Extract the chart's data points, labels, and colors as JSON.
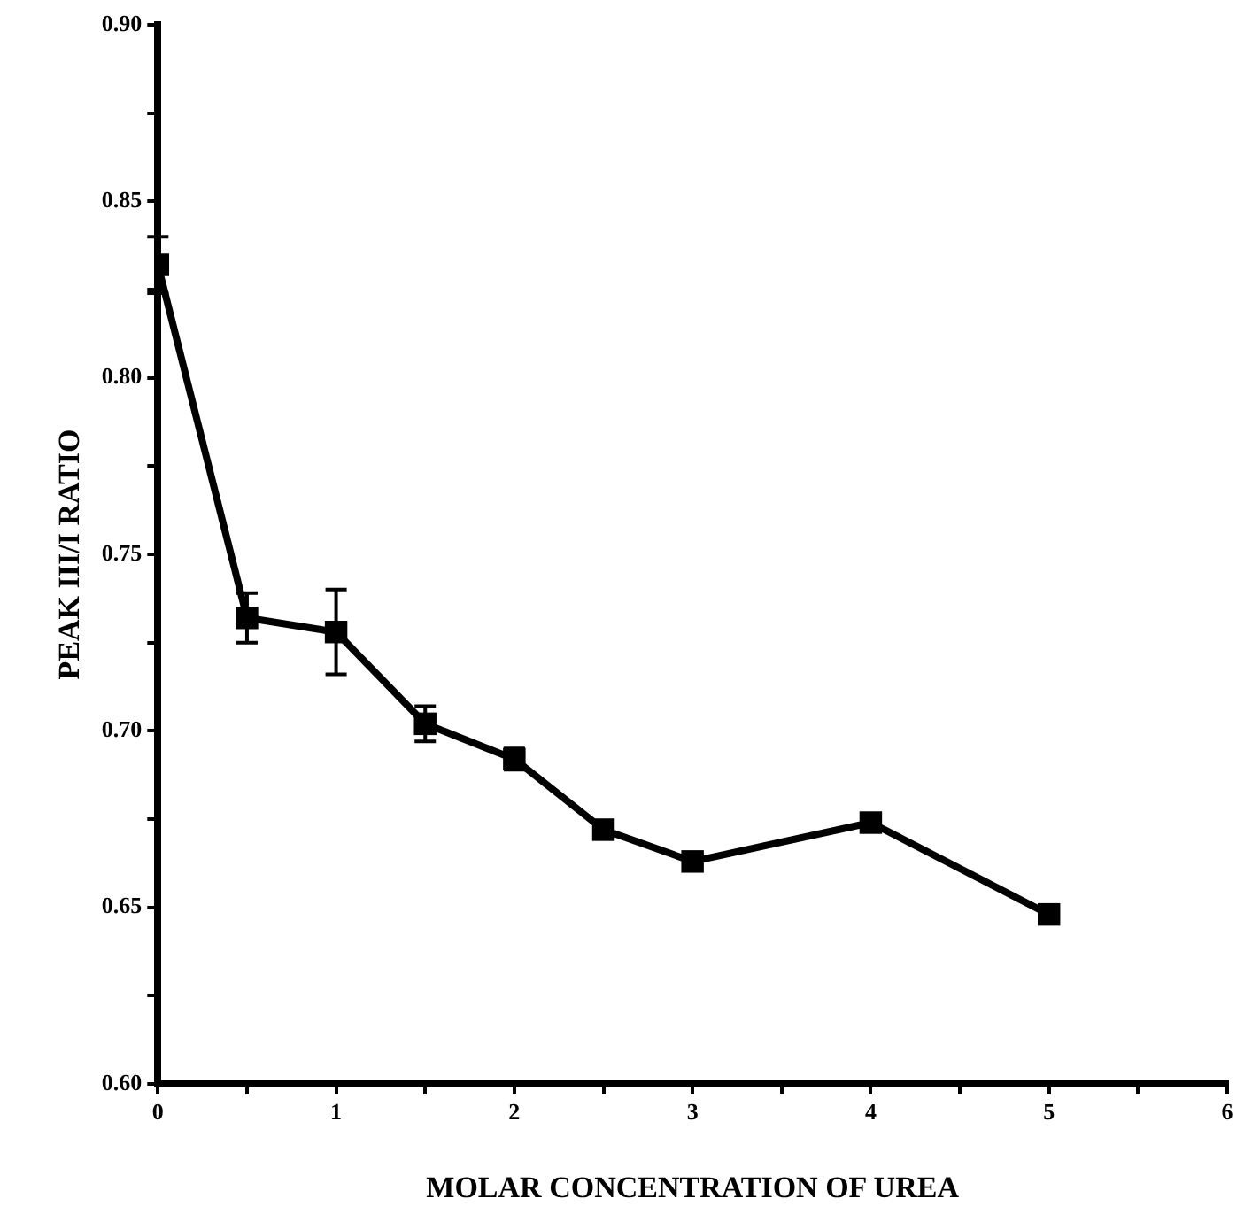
{
  "chart_data": {
    "type": "line",
    "xlabel": "MOLAR CONCENTRATION OF UREA",
    "ylabel": "PEAK III/I RATIO",
    "x": [
      0,
      0.5,
      1,
      1.5,
      2,
      2.5,
      3,
      4,
      5
    ],
    "series": [
      {
        "color": "#000000",
        "values": [
          0.832,
          0.732,
          0.728,
          0.702,
          0.692,
          0.672,
          0.663,
          0.674,
          0.648
        ],
        "errors": [
          0.008,
          0.007,
          0.012,
          0.005,
          0.003,
          null,
          null,
          null,
          null
        ]
      }
    ],
    "xlim": [
      0,
      6
    ],
    "xticks": [
      0,
      {
        "value": 0.5,
        "label": null
      },
      1,
      {
        "value": 1.5,
        "label": null
      },
      2,
      {
        "value": 2.5,
        "label": null
      },
      3,
      {
        "value": 3.5,
        "label": null
      },
      4,
      {
        "value": 4.5,
        "label": null
      },
      5,
      {
        "value": 5.5,
        "label": null
      },
      6
    ],
    "ylim": [
      0.6,
      0.9
    ],
    "yticks": [
      {
        "value": 0.6,
        "label": "0.60"
      },
      {
        "value": 0.625,
        "label": null
      },
      {
        "value": 0.65,
        "label": "0.65"
      },
      {
        "value": 0.675,
        "label": null
      },
      {
        "value": 0.7,
        "label": "0.70"
      },
      {
        "value": 0.725,
        "label": null
      },
      {
        "value": 0.75,
        "label": "0.75"
      },
      {
        "value": 0.775,
        "label": null
      },
      {
        "value": 0.8,
        "label": "0.80"
      },
      {
        "value": 0.825,
        "label": null
      },
      {
        "value": 0.85,
        "label": "0.85"
      },
      {
        "value": 0.875,
        "label": null
      },
      {
        "value": 0.9,
        "label": "0.90"
      }
    ],
    "grid": false,
    "legend": false,
    "marker": "square",
    "line_style": "solid"
  }
}
